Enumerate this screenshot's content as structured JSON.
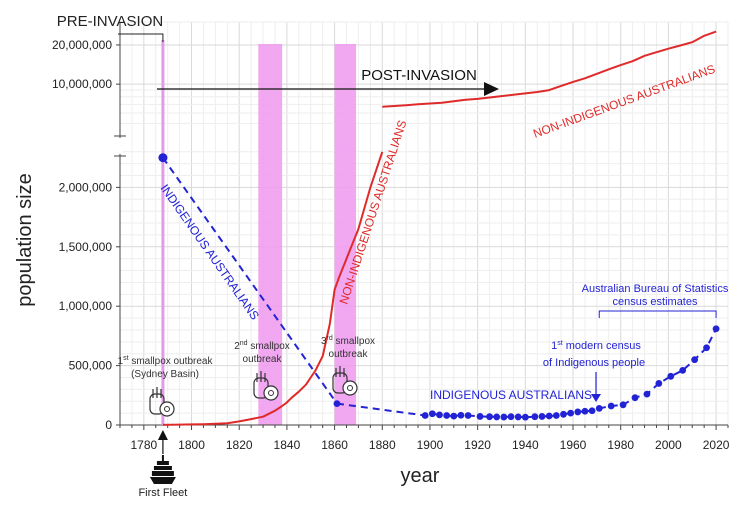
{
  "chart_data": {
    "type": "line",
    "xlabel": "year",
    "ylabel": "population size",
    "xlim": [
      1770,
      2025
    ],
    "x_ticks": [
      1780,
      1800,
      1820,
      1840,
      1860,
      1880,
      1900,
      1920,
      1940,
      1960,
      1980,
      2000,
      2020
    ],
    "lower_panel": {
      "ylim": [
        0,
        2500000
      ],
      "y_ticks": [
        0,
        500000,
        1000000,
        1500000,
        2000000
      ],
      "y_tick_labels": [
        "0",
        "500,000",
        "1,000,000",
        "1,500,000",
        "2,000,000"
      ]
    },
    "upper_panel": {
      "scale": "log",
      "ylim": [
        4000000,
        30000000
      ],
      "y_ticks": [
        10000000,
        20000000
      ],
      "y_tick_labels": [
        "10,000,000",
        "20,000,000"
      ]
    },
    "series": [
      {
        "name": "NON-INDIGENOUS AUSTRALIANS",
        "color": "#e02a2a",
        "style": "solid",
        "x": [
          1788,
          1795,
          1800,
          1805,
          1810,
          1815,
          1820,
          1825,
          1830,
          1835,
          1838,
          1840,
          1842,
          1845,
          1848,
          1850,
          1852,
          1855,
          1858,
          1860,
          1862,
          1865,
          1870,
          1875,
          1880
        ],
        "y": [
          1000,
          3000,
          5000,
          7000,
          10000,
          15000,
          30000,
          50000,
          70000,
          120000,
          160000,
          190000,
          230000,
          280000,
          340000,
          400000,
          460000,
          580000,
          850000,
          1140000,
          1250000,
          1400000,
          1650000,
          2000000,
          2300000
        ]
      },
      {
        "name": "NON-INDIGENOUS AUSTRALIANS",
        "color": "#e02a2a",
        "style": "solid",
        "panel": "upper",
        "x": [
          1880,
          1885,
          1890,
          1895,
          1900,
          1905,
          1910,
          1915,
          1920,
          1925,
          1930,
          1935,
          1940,
          1945,
          1950,
          1955,
          1960,
          1965,
          1970,
          1975,
          1980,
          1985,
          1990,
          1995,
          2000,
          2005,
          2010,
          2015,
          2020
        ],
        "y": [
          6700000,
          6800000,
          6900000,
          7000000,
          7100000,
          7200000,
          7400000,
          7600000,
          7700000,
          7900000,
          8100000,
          8300000,
          8500000,
          8700000,
          9000000,
          9700000,
          10400000,
          11100000,
          12000000,
          13000000,
          14000000,
          15000000,
          16500000,
          17600000,
          18700000,
          19800000,
          21000000,
          23500000,
          25300000
        ]
      },
      {
        "name": "INDIGENOUS AUSTRALIANS",
        "color": "#2323d6",
        "style": "dashed",
        "x": [
          1788,
          1861
        ],
        "y": [
          2250000,
          180000
        ]
      },
      {
        "name": "INDIGENOUS AUSTRALIANS",
        "color": "#2323d6",
        "style": "dashed-points",
        "x": [
          1861,
          1898,
          1901,
          1904,
          1907,
          1910,
          1913,
          1916,
          1921,
          1925,
          1928,
          1931,
          1934,
          1937,
          1940,
          1944,
          1947,
          1950,
          1953,
          1956,
          1959,
          1962,
          1965,
          1968,
          1971,
          1976,
          1981,
          1986,
          1991,
          1996,
          2001,
          2006,
          2011,
          2016,
          2020
        ],
        "y": [
          180000,
          80000,
          95000,
          85000,
          80000,
          75000,
          82000,
          80000,
          72000,
          70000,
          68000,
          67000,
          70000,
          68000,
          66000,
          70000,
          72000,
          76000,
          80000,
          90000,
          100000,
          110000,
          116000,
          120000,
          140000,
          160000,
          170000,
          230000,
          260000,
          350000,
          410000,
          460000,
          550000,
          650000,
          810000
        ]
      }
    ],
    "shaded_periods": [
      {
        "x": [
          1828,
          1838
        ],
        "color": "#ee99ee"
      },
      {
        "x": [
          1860,
          1869
        ],
        "color": "#ee99ee"
      }
    ],
    "pre_invasion_line_x": 1788,
    "annotations": {
      "pre_invasion": "PRE-INVASION",
      "post_invasion": "POST-INVASION",
      "indigenous_diagonal": "INDIGENOUS AUSTRALIANS",
      "indigenous_flat": "INDIGENOUS AUSTRALIANS",
      "nonindig_steep": "NON-INDIGENOUS AUSTRALIANS",
      "nonindig_upper": "NON-INDIGENOUS AUSTRALIANS",
      "smallpox1_sup": "st",
      "smallpox1_line1": "smallpox outbreak",
      "smallpox1_line2": "(Sydney Basin)",
      "smallpox1_num": "1",
      "smallpox2_num": "2",
      "smallpox2_sup": "nd",
      "smallpox2_line1": "smallpox",
      "smallpox2_line2": "outbreak",
      "smallpox3_num": "3",
      "smallpox3_sup": "rd",
      "smallpox3_line1": "smallpox",
      "smallpox3_line2": "outbreak",
      "census_num": "1",
      "census_sup": "st",
      "census_line1": "modern census",
      "census_line2": "of Indigenous people",
      "abs_line1": "Australian Bureau of Statistics",
      "abs_line2": "census estimates",
      "first_fleet": "First Fleet"
    }
  }
}
